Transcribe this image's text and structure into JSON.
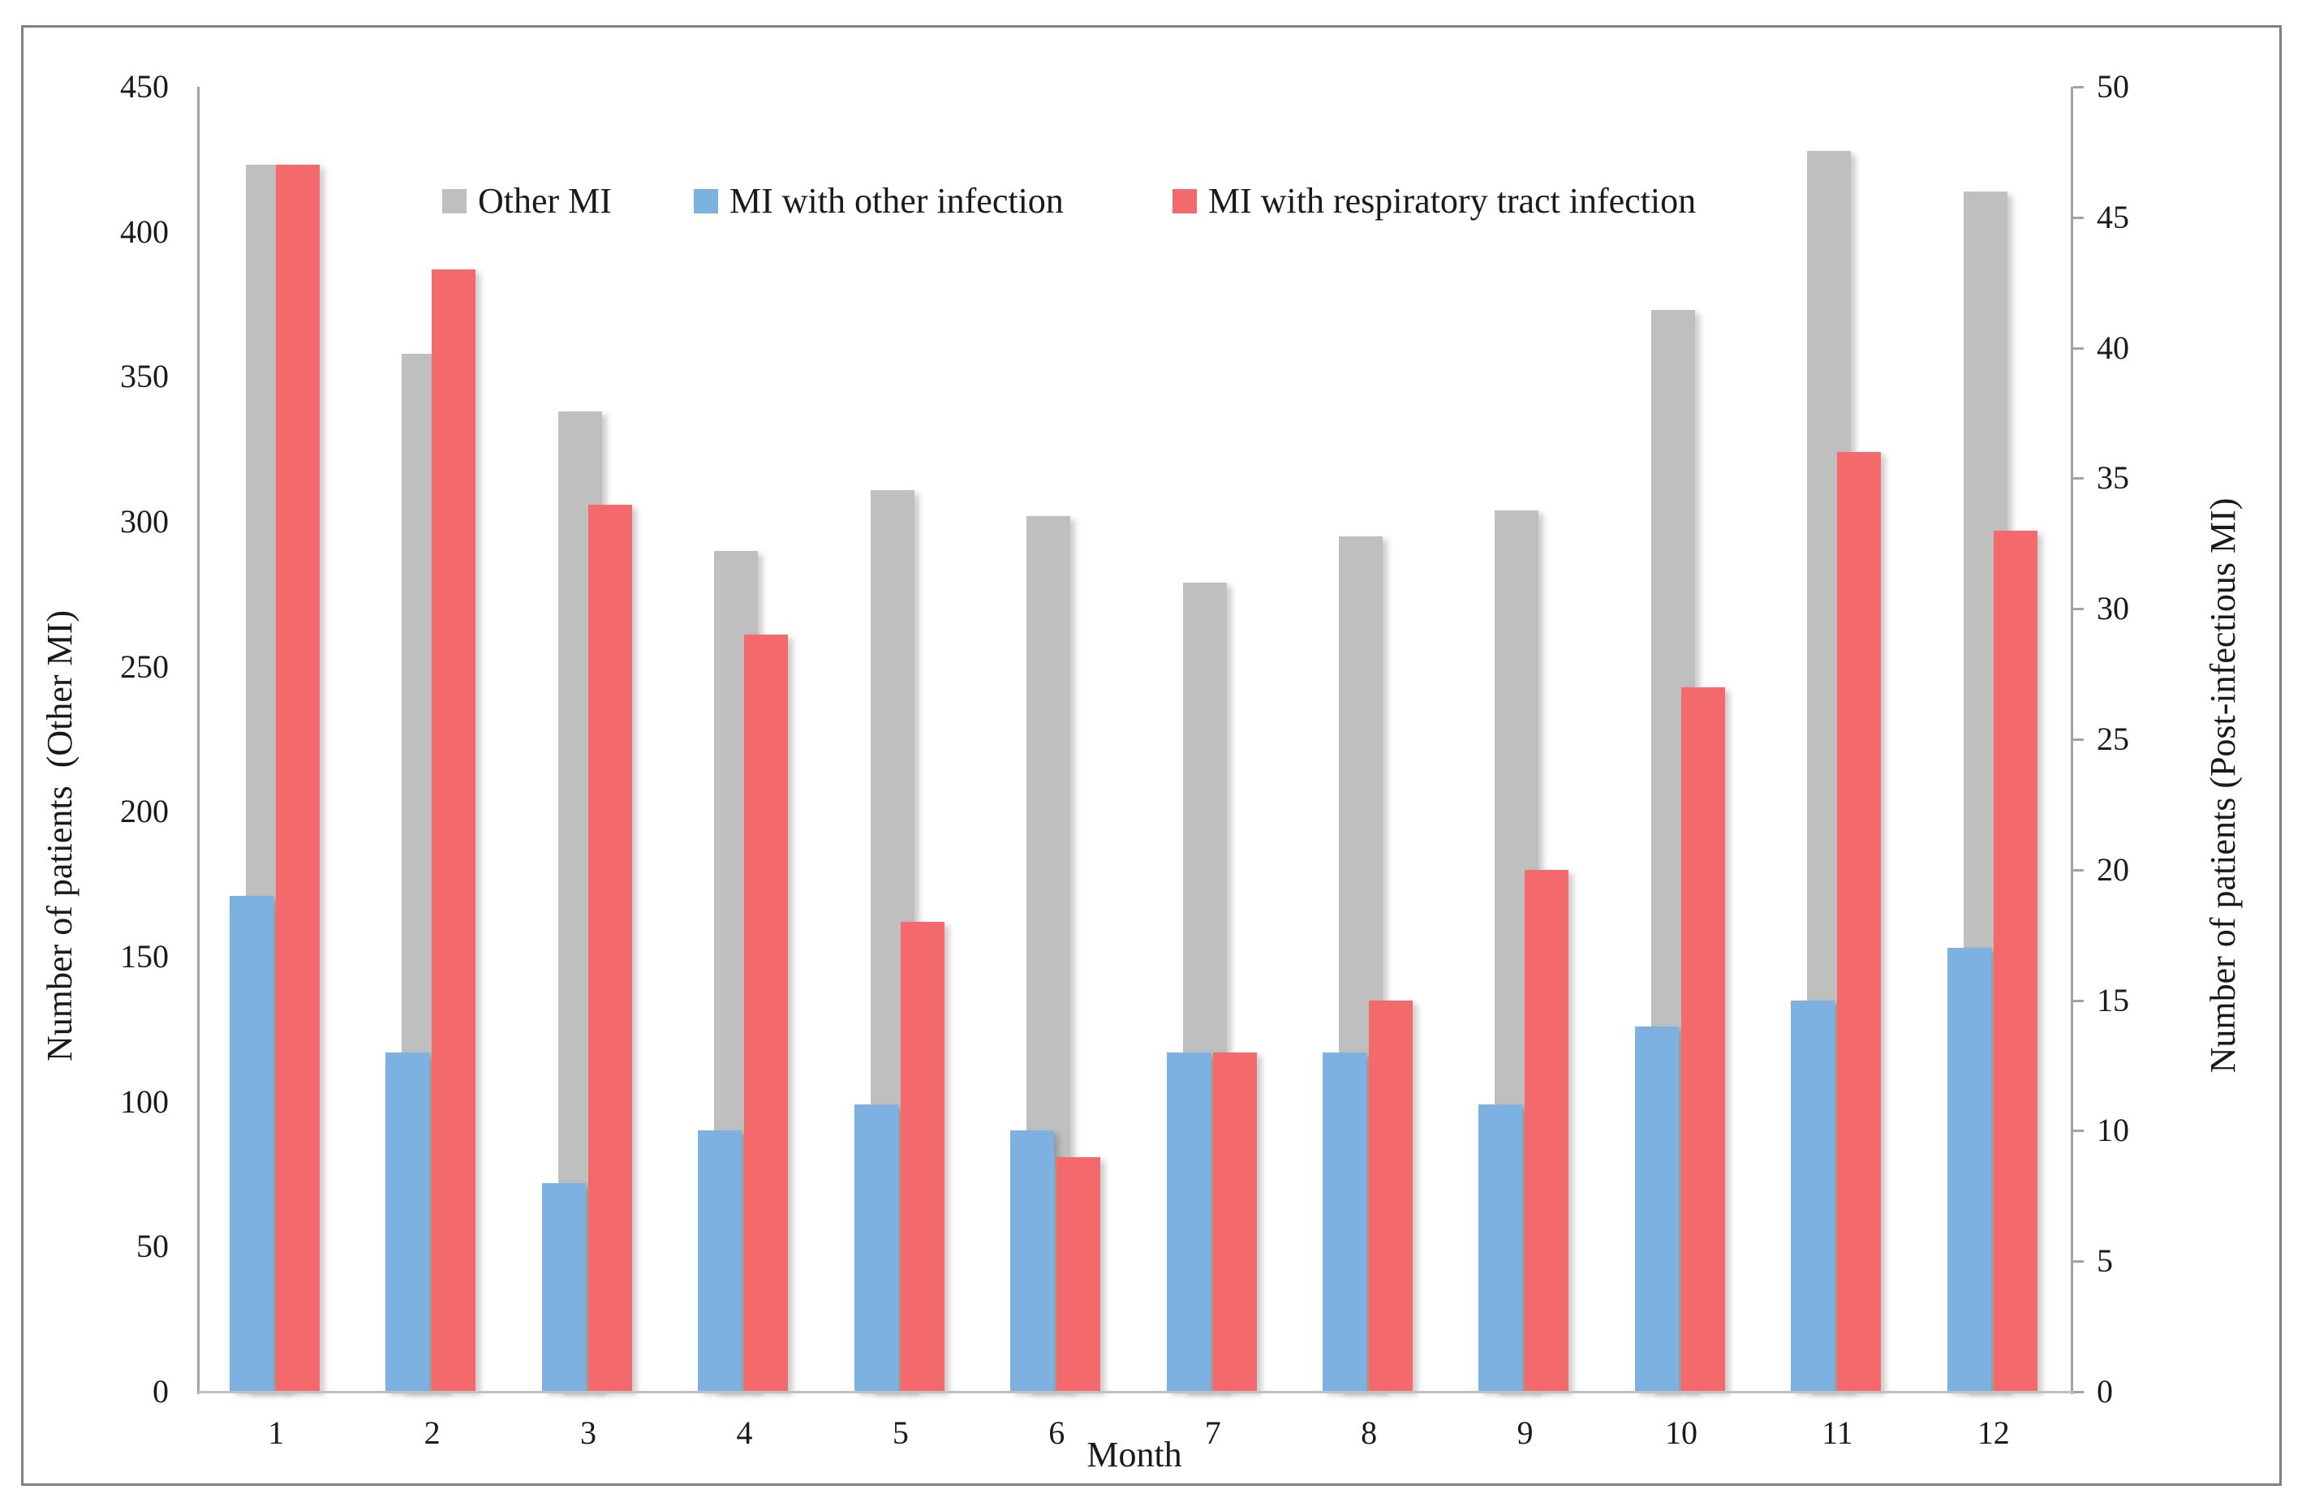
{
  "figure": {
    "legend": {
      "items": [
        {
          "label": "Other MI",
          "color": "#BFBFBF"
        },
        {
          "label": "MI with other infection",
          "color": "#7CB1E2"
        },
        {
          "label": "MI with respiratory tract infection",
          "color": "#F4696C"
        }
      ]
    },
    "x_axis": {
      "title": "Month",
      "categories": [
        "1",
        "2",
        "3",
        "4",
        "5",
        "6",
        "7",
        "8",
        "9",
        "10",
        "11",
        "12"
      ]
    },
    "y_axis_left": {
      "title": "Number of patients  (Other MI)",
      "ticks": [
        0,
        50,
        100,
        150,
        200,
        250,
        300,
        350,
        400,
        450
      ]
    },
    "y_axis_right": {
      "title": "Number of patients (Post-infectious MI)",
      "ticks": [
        0,
        5,
        10,
        15,
        20,
        25,
        30,
        35,
        40,
        45,
        50
      ]
    }
  },
  "chart_data": {
    "type": "bar",
    "title": "",
    "xlabel": "Month",
    "ylabel_left": "Number of patients (Other MI)",
    "ylabel_right": "Number of patients (Post-infectious MI)",
    "categories": [
      "1",
      "2",
      "3",
      "4",
      "5",
      "6",
      "7",
      "8",
      "9",
      "10",
      "11",
      "12"
    ],
    "ylim_left": [
      0,
      450
    ],
    "ylim_right": [
      0,
      50
    ],
    "grid": false,
    "legend_position": "top",
    "series": [
      {
        "name": "Other MI",
        "axis": "left",
        "color": "#BFBFBF",
        "values": [
          423,
          358,
          338,
          290,
          311,
          302,
          279,
          295,
          304,
          373,
          428,
          414
        ]
      },
      {
        "name": "MI with other infection",
        "axis": "right",
        "color": "#7CB1E2",
        "values": [
          19,
          13,
          8,
          10,
          11,
          10,
          13,
          13,
          11,
          14,
          15,
          17
        ]
      },
      {
        "name": "MI with respiratory tract infection",
        "axis": "right",
        "color": "#F4696C",
        "values": [
          47,
          43,
          34,
          29,
          18,
          9,
          13,
          15,
          20,
          27,
          36,
          33
        ]
      }
    ]
  }
}
